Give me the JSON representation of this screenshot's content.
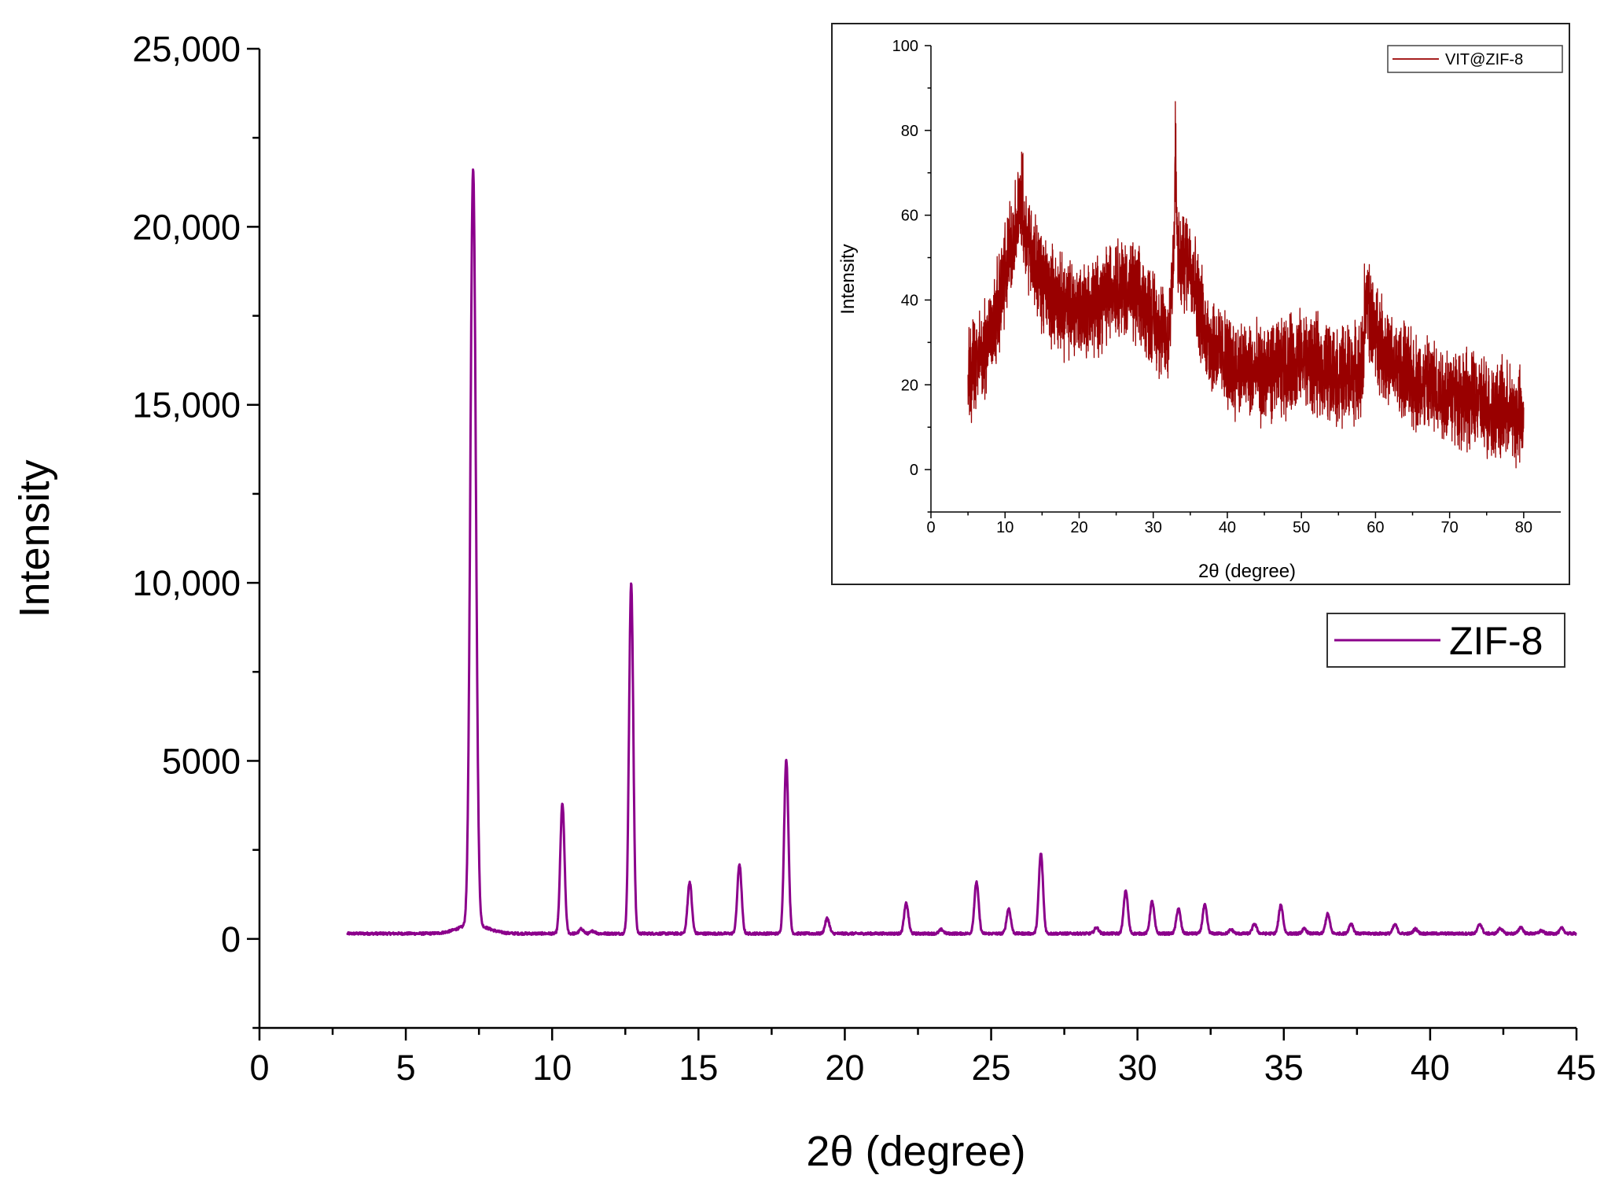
{
  "chart_data": [
    {
      "type": "line",
      "role": "main",
      "title": "",
      "xlabel": "2θ (degree)",
      "ylabel": "Intensity",
      "xlim": [
        0,
        45
      ],
      "ylim": [
        -2500,
        25000
      ],
      "x_ticks": [
        0,
        5,
        10,
        15,
        20,
        25,
        30,
        35,
        40,
        45
      ],
      "x_tick_labels": [
        "0",
        "5",
        "10",
        "15",
        "20",
        "25",
        "30",
        "35",
        "40",
        "45"
      ],
      "y_ticks": [
        0,
        5000,
        10000,
        15000,
        20000,
        25000
      ],
      "y_tick_labels": [
        "0",
        "5000",
        "10,000",
        "15,000",
        "20,000",
        "25,000"
      ],
      "legend": "right, below inset",
      "grid": false,
      "series": [
        {
          "name": "ZIF-8",
          "color": "#8b008b",
          "x_range": [
            3,
            45
          ],
          "baseline": 150,
          "peaks": [
            {
              "x": 7.3,
              "y": 21400
            },
            {
              "x": 10.35,
              "y": 3800
            },
            {
              "x": 11.0,
              "y": 280
            },
            {
              "x": 11.4,
              "y": 220
            },
            {
              "x": 12.7,
              "y": 10000
            },
            {
              "x": 14.7,
              "y": 1600
            },
            {
              "x": 16.4,
              "y": 2100
            },
            {
              "x": 18.0,
              "y": 5050
            },
            {
              "x": 19.4,
              "y": 580
            },
            {
              "x": 22.1,
              "y": 1000
            },
            {
              "x": 23.3,
              "y": 260
            },
            {
              "x": 24.5,
              "y": 1600
            },
            {
              "x": 25.6,
              "y": 850
            },
            {
              "x": 26.7,
              "y": 2400
            },
            {
              "x": 28.6,
              "y": 320
            },
            {
              "x": 29.6,
              "y": 1350
            },
            {
              "x": 30.5,
              "y": 1050
            },
            {
              "x": 31.4,
              "y": 850
            },
            {
              "x": 32.3,
              "y": 950
            },
            {
              "x": 33.2,
              "y": 260
            },
            {
              "x": 34.0,
              "y": 420
            },
            {
              "x": 34.9,
              "y": 950
            },
            {
              "x": 35.7,
              "y": 280
            },
            {
              "x": 36.5,
              "y": 700
            },
            {
              "x": 37.3,
              "y": 430
            },
            {
              "x": 38.8,
              "y": 400
            },
            {
              "x": 39.5,
              "y": 280
            },
            {
              "x": 41.7,
              "y": 420
            },
            {
              "x": 42.4,
              "y": 300
            },
            {
              "x": 43.1,
              "y": 330
            },
            {
              "x": 43.8,
              "y": 230
            },
            {
              "x": 44.5,
              "y": 300
            }
          ]
        }
      ]
    },
    {
      "type": "line",
      "role": "inset",
      "title": "",
      "xlabel": "2θ (degree)",
      "ylabel": "Intensity",
      "xlim": [
        0,
        85
      ],
      "ylim": [
        -10,
        100
      ],
      "x_ticks": [
        0,
        10,
        20,
        30,
        40,
        50,
        60,
        70,
        80
      ],
      "x_tick_labels": [
        "0",
        "10",
        "20",
        "30",
        "40",
        "50",
        "60",
        "70",
        "80"
      ],
      "y_ticks": [
        0,
        20,
        40,
        60,
        80,
        100
      ],
      "y_tick_labels": [
        "0",
        "20",
        "40",
        "60",
        "80",
        "100"
      ],
      "legend": "top-right",
      "grid": false,
      "series": [
        {
          "name": "VIT@ZIF-8",
          "color": "#990000",
          "x_range": [
            5,
            80
          ],
          "noise_amplitude": 9,
          "envelope": [
            {
              "x": 5,
              "y": 22
            },
            {
              "x": 7,
              "y": 27
            },
            {
              "x": 9,
              "y": 38
            },
            {
              "x": 11,
              "y": 55
            },
            {
              "x": 12,
              "y": 60
            },
            {
              "x": 13,
              "y": 55
            },
            {
              "x": 15,
              "y": 44
            },
            {
              "x": 18,
              "y": 38
            },
            {
              "x": 22,
              "y": 38
            },
            {
              "x": 25,
              "y": 44
            },
            {
              "x": 27,
              "y": 42
            },
            {
              "x": 30,
              "y": 36
            },
            {
              "x": 32,
              "y": 30
            },
            {
              "x": 33,
              "y": 60
            },
            {
              "x": 33.5,
              "y": 48
            },
            {
              "x": 35,
              "y": 50
            },
            {
              "x": 37,
              "y": 32
            },
            {
              "x": 40,
              "y": 25
            },
            {
              "x": 45,
              "y": 22
            },
            {
              "x": 50,
              "y": 26
            },
            {
              "x": 55,
              "y": 22
            },
            {
              "x": 58,
              "y": 23
            },
            {
              "x": 59,
              "y": 37
            },
            {
              "x": 62,
              "y": 25
            },
            {
              "x": 66,
              "y": 20
            },
            {
              "x": 70,
              "y": 18
            },
            {
              "x": 75,
              "y": 15
            },
            {
              "x": 80,
              "y": 12
            }
          ]
        }
      ]
    }
  ]
}
